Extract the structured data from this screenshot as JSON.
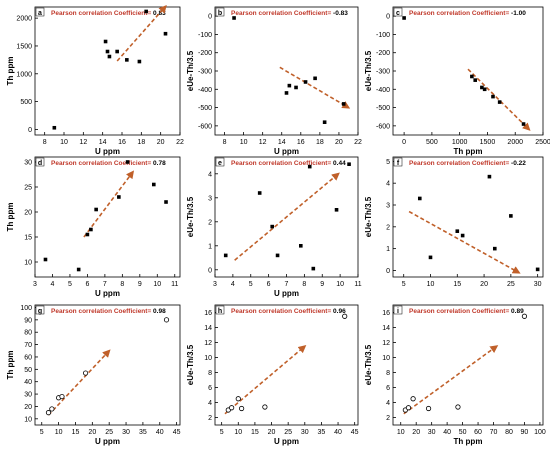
{
  "colors": {
    "trend": "#c0602a",
    "coef_label": "#c0392b",
    "coef_value": "#000000",
    "marker": "#000000",
    "axis": "#000000"
  },
  "chart_data": [
    {
      "id": "a",
      "type": "scatter",
      "panel_label": "a",
      "coef_label": "Pearson correlation Coefficient=",
      "coef_value": "0.83",
      "xlabel": "U ppm",
      "ylabel": "Th ppm",
      "xlim": [
        7,
        22
      ],
      "ylim": [
        -100,
        2200
      ],
      "xticks": [
        8,
        10,
        12,
        14,
        16,
        18,
        20,
        22
      ],
      "yticks": [
        0,
        500,
        1000,
        1500,
        2000
      ],
      "marker": "filled-square",
      "points": [
        [
          9,
          30
        ],
        [
          14.3,
          1580
        ],
        [
          14.5,
          1400
        ],
        [
          14.7,
          1310
        ],
        [
          15.5,
          1400
        ],
        [
          16.5,
          1250
        ],
        [
          17.8,
          1220
        ],
        [
          18.5,
          2120
        ],
        [
          20.5,
          1720
        ]
      ],
      "trend": [
        [
          15.5,
          1230
        ],
        [
          20.5,
          2210
        ]
      ]
    },
    {
      "id": "b",
      "type": "scatter",
      "panel_label": "b",
      "coef_label": "Pearson correlation Coefficient=",
      "coef_value": "-0.83",
      "xlabel": "U ppm",
      "ylabel": "eUe-Th/3.5",
      "xlim": [
        7,
        22
      ],
      "ylim": [
        -650,
        50
      ],
      "xticks": [
        8,
        10,
        12,
        14,
        16,
        18,
        20,
        22
      ],
      "yticks": [
        -600,
        -500,
        -400,
        -300,
        -200,
        -100,
        0
      ],
      "marker": "filled-square",
      "points": [
        [
          9,
          -10
        ],
        [
          14.5,
          -420
        ],
        [
          14.8,
          -380
        ],
        [
          15.5,
          -390
        ],
        [
          16.5,
          -360
        ],
        [
          17.5,
          -340
        ],
        [
          18.5,
          -580
        ],
        [
          20.5,
          -480
        ]
      ],
      "trend": [
        [
          13.8,
          -280
        ],
        [
          21,
          -500
        ]
      ]
    },
    {
      "id": "c",
      "type": "scatter",
      "panel_label": "c",
      "coef_label": "Pearson correlation Coefficient=",
      "coef_value": "-1.00",
      "xlabel": "Th ppm",
      "ylabel": "eUe-Th/3.5",
      "xlim": [
        -200,
        2500
      ],
      "ylim": [
        -650,
        50
      ],
      "xticks": [
        0,
        500,
        1000,
        1500,
        2000,
        2500
      ],
      "yticks": [
        -600,
        -500,
        -400,
        -300,
        -200,
        -100,
        0
      ],
      "marker": "filled-square",
      "points": [
        [
          0,
          -10
        ],
        [
          1220,
          -330
        ],
        [
          1280,
          -350
        ],
        [
          1400,
          -390
        ],
        [
          1450,
          -400
        ],
        [
          1600,
          -440
        ],
        [
          1720,
          -470
        ],
        [
          2150,
          -590
        ]
      ],
      "trend": [
        [
          1150,
          -290
        ],
        [
          2250,
          -620
        ]
      ]
    },
    {
      "id": "d",
      "type": "scatter",
      "panel_label": "d",
      "coef_label": "Pearson correlation Coefficient=",
      "coef_value": "0.78",
      "xlabel": "U ppm",
      "ylabel": "Th ppm",
      "xlim": [
        3,
        11.3
      ],
      "ylim": [
        7,
        31
      ],
      "xticks": [
        3,
        4,
        5,
        6,
        7,
        8,
        9,
        10,
        11
      ],
      "yticks": [
        10,
        15,
        20,
        25,
        30
      ],
      "marker": "filled-square",
      "points": [
        [
          3.6,
          10.5
        ],
        [
          5.5,
          8.5
        ],
        [
          6.0,
          15.5
        ],
        [
          6.2,
          16.5
        ],
        [
          6.5,
          20.5
        ],
        [
          7.8,
          23
        ],
        [
          8.3,
          30
        ],
        [
          9.8,
          25.5
        ],
        [
          10.5,
          22
        ]
      ],
      "trend": [
        [
          5.8,
          15
        ],
        [
          8.6,
          28
        ]
      ]
    },
    {
      "id": "e",
      "type": "scatter",
      "panel_label": "e",
      "coef_label": "Pearson correlation Coefficient=",
      "coef_value": "0.44",
      "xlabel": "U ppm",
      "ylabel": "eUe-Th/3.5",
      "xlim": [
        3,
        11
      ],
      "ylim": [
        -0.3,
        4.7
      ],
      "xticks": [
        3,
        4,
        5,
        6,
        7,
        8,
        9,
        10,
        11
      ],
      "yticks": [
        0,
        1,
        2,
        3,
        4
      ],
      "marker": "filled-square",
      "points": [
        [
          3.6,
          0.6
        ],
        [
          5.5,
          3.2
        ],
        [
          6.2,
          1.8
        ],
        [
          6.5,
          0.6
        ],
        [
          7.8,
          1.0
        ],
        [
          8.3,
          4.3
        ],
        [
          8.5,
          0.05
        ],
        [
          9.8,
          2.5
        ],
        [
          10.5,
          4.4
        ]
      ],
      "trend": [
        [
          4.1,
          0.4
        ],
        [
          9.9,
          4.0
        ]
      ]
    },
    {
      "id": "f",
      "type": "scatter",
      "panel_label": "f",
      "coef_label": "Pearson correlation Coefficient=",
      "coef_value": "-0.22",
      "xlabel": "",
      "ylabel": "eUe-Th/3.5",
      "xlim": [
        3,
        31
      ],
      "ylim": [
        -0.3,
        5.2
      ],
      "xticks": [
        5,
        10,
        15,
        20,
        25,
        30
      ],
      "yticks": [
        0,
        1,
        2,
        3,
        4,
        5
      ],
      "marker": "filled-square",
      "points": [
        [
          8,
          3.3
        ],
        [
          10,
          0.6
        ],
        [
          15,
          1.8
        ],
        [
          16,
          1.6
        ],
        [
          21,
          4.3
        ],
        [
          22,
          1.0
        ],
        [
          25,
          2.5
        ],
        [
          30,
          0.05
        ]
      ],
      "trend": [
        [
          6,
          2.7
        ],
        [
          26.5,
          -0.1
        ]
      ]
    },
    {
      "id": "g",
      "type": "scatter",
      "panel_label": "g",
      "coef_label": "Pearson correlation Coefficient=",
      "coef_value": "0.98",
      "xlabel": "U ppm",
      "ylabel": "Th ppm",
      "xlim": [
        3,
        46
      ],
      "ylim": [
        5,
        102
      ],
      "xticks": [
        5,
        10,
        15,
        20,
        25,
        30,
        35,
        40,
        45
      ],
      "yticks": [
        10,
        20,
        30,
        40,
        50,
        60,
        70,
        80,
        90,
        100
      ],
      "marker": "open-circle",
      "points": [
        [
          7,
          15
        ],
        [
          8,
          18
        ],
        [
          10,
          27
        ],
        [
          11,
          28
        ],
        [
          18,
          47
        ],
        [
          42,
          90
        ]
      ],
      "trend": [
        [
          7,
          13
        ],
        [
          25,
          65
        ]
      ]
    },
    {
      "id": "h",
      "type": "scatter",
      "panel_label": "h",
      "coef_label": "Pearson correlation Coefficient=",
      "coef_value": "0.96",
      "xlabel": "U ppm",
      "ylabel": "eUe-Th/3.5",
      "xlim": [
        3,
        46
      ],
      "ylim": [
        1,
        17
      ],
      "xticks": [
        5,
        10,
        15,
        20,
        25,
        30,
        35,
        40,
        45
      ],
      "yticks": [
        2,
        4,
        6,
        8,
        10,
        12,
        14,
        16
      ],
      "marker": "open-circle",
      "points": [
        [
          7,
          3.0
        ],
        [
          8,
          3.3
        ],
        [
          10,
          4.5
        ],
        [
          11,
          3.2
        ],
        [
          18,
          3.4
        ],
        [
          42,
          15.5
        ]
      ],
      "trend": [
        [
          6,
          2.5
        ],
        [
          30,
          11.5
        ]
      ]
    },
    {
      "id": "i",
      "type": "scatter",
      "panel_label": "i",
      "coef_label": "Pearson correlation Coefficient=",
      "coef_value": "0.89",
      "xlabel": "Th ppm",
      "ylabel": "eUe-Th/3.5",
      "xlim": [
        5,
        102
      ],
      "ylim": [
        1,
        17
      ],
      "xticks": [
        10,
        20,
        30,
        40,
        50,
        60,
        70,
        80,
        90,
        100
      ],
      "yticks": [
        2,
        4,
        6,
        8,
        10,
        12,
        14,
        16
      ],
      "marker": "open-circle",
      "points": [
        [
          13,
          3.0
        ],
        [
          15,
          3.3
        ],
        [
          18,
          4.5
        ],
        [
          28,
          3.2
        ],
        [
          47,
          3.4
        ],
        [
          90,
          15.5
        ]
      ],
      "trend": [
        [
          12,
          2.5
        ],
        [
          72,
          11.5
        ]
      ]
    }
  ]
}
